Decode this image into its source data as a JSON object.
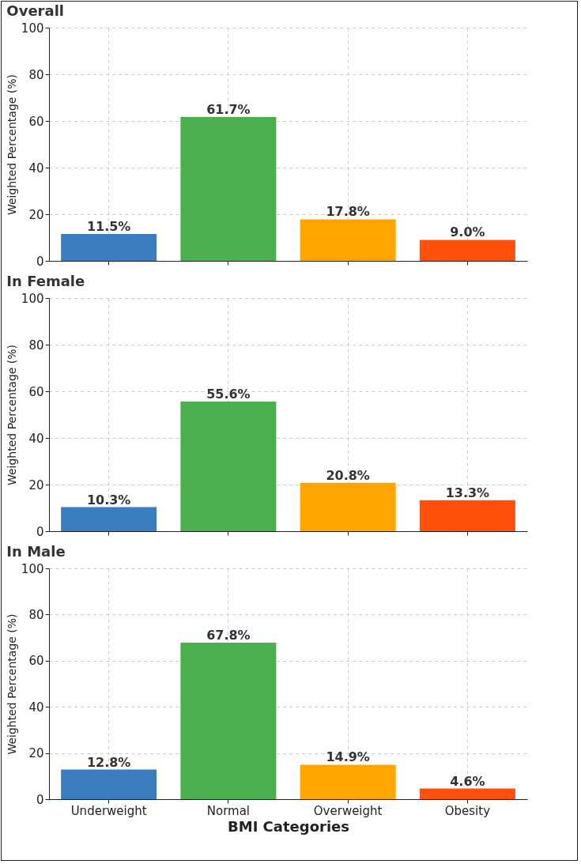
{
  "chart_data": [
    {
      "type": "bar",
      "title": "Overall",
      "ylabel": "Weighted Percentage (%)",
      "categories": [
        null,
        null,
        null,
        null
      ],
      "values": [
        11.5,
        61.7,
        17.8,
        9.0
      ],
      "colors": [
        "#3a7ebf",
        "#4caf4f",
        "#ffa500",
        "#ff4f0a"
      ],
      "value_labels": [
        "11.5%",
        "61.7%",
        "17.8%",
        "9.0%"
      ],
      "ylim": [
        0,
        100
      ],
      "yticks": [
        0,
        20,
        40,
        60,
        80,
        100
      ],
      "grid": true,
      "tick_labels": "y"
    },
    {
      "type": "bar",
      "title": "In Female",
      "ylabel": "Weighted Percentage (%)",
      "categories": [
        null,
        null,
        null,
        null
      ],
      "values": [
        10.3,
        55.6,
        20.8,
        13.3
      ],
      "colors": [
        "#3a7ebf",
        "#4caf4f",
        "#ffa500",
        "#ff4f0a"
      ],
      "value_labels": [
        "10.3%",
        "55.6%",
        "20.8%",
        "13.3%"
      ],
      "ylim": [
        0,
        100
      ],
      "yticks": [
        0,
        20,
        40,
        60,
        80,
        100
      ],
      "grid": true,
      "tick_labels": "y"
    },
    {
      "type": "bar",
      "title": "In Male",
      "xlabel": "BMI Categories",
      "ylabel": "Weighted Percentage (%)",
      "categories": [
        "Underweight",
        "Normal",
        "Overweight",
        "Obesity"
      ],
      "values": [
        12.8,
        67.8,
        14.9,
        4.6
      ],
      "colors": [
        "#3a7ebf",
        "#4caf4f",
        "#ffa500",
        "#ff4f0a"
      ],
      "value_labels": [
        "12.8%",
        "67.8%",
        "14.9%",
        "4.6%"
      ],
      "ylim": [
        0,
        100
      ],
      "yticks": [
        0,
        20,
        40,
        60,
        80,
        100
      ],
      "grid": true
    }
  ]
}
